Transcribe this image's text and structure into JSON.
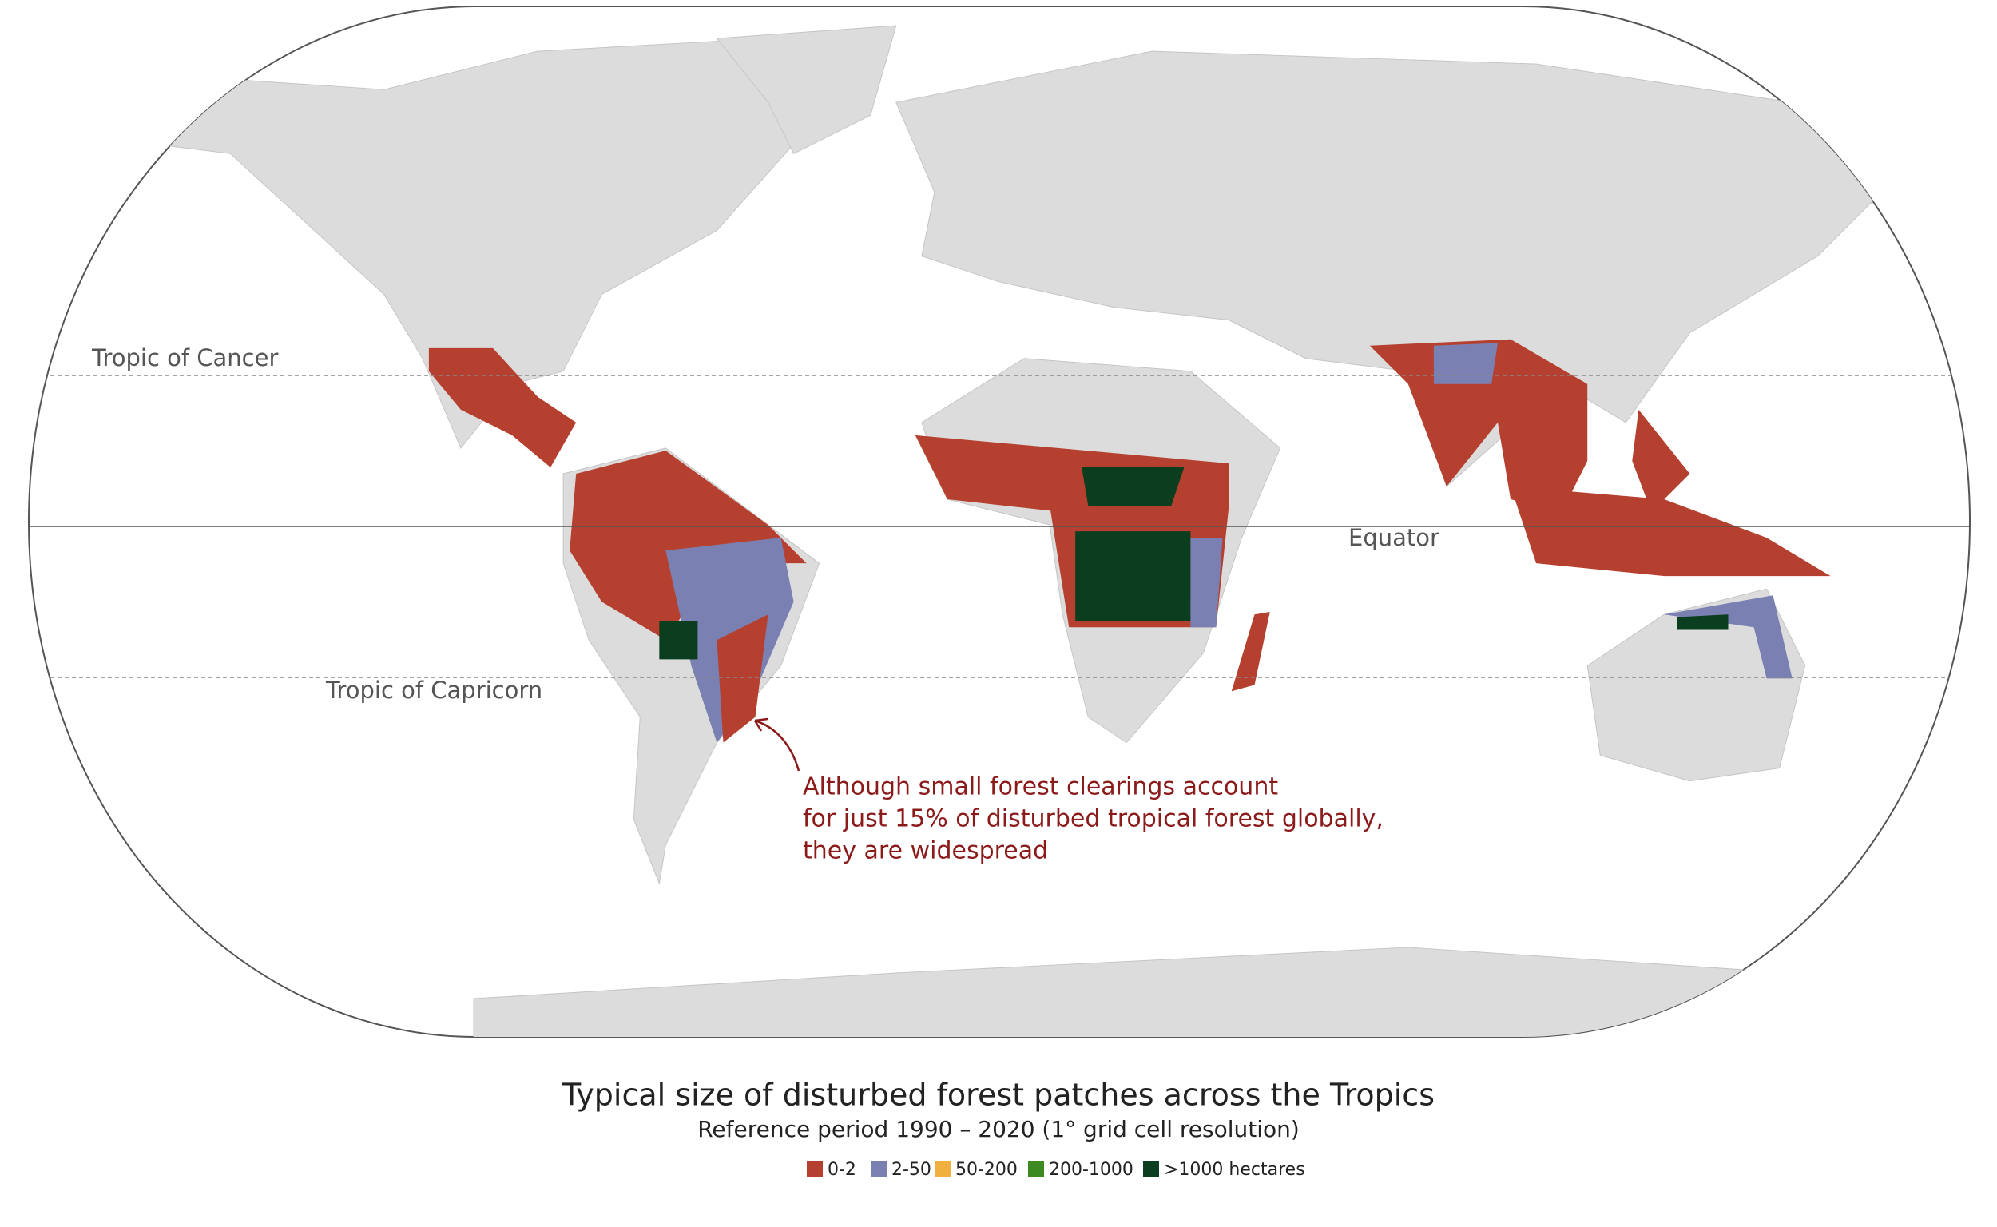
{
  "map": {
    "labels": {
      "tropic_of_cancer": "Tropic of Cancer",
      "equator": "Equator",
      "tropic_of_capricorn": "Tropic of Capricorn"
    },
    "annotation": [
      "Although small forest clearings account",
      "for just 15% of disturbed tropical forest globally,",
      "they are widespread"
    ],
    "title": "Typical size of disturbed forest patches across the Tropics",
    "subtitle": "Reference period 1990 – 2020 (1° grid cell resolution)",
    "legend": [
      {
        "label": "0-2",
        "color": "#b5402f"
      },
      {
        "label": "2-50",
        "color": "#7b80b3"
      },
      {
        "label": "50-200",
        "color": "#f0b040"
      },
      {
        "label": "200-1000",
        "color": "#3d8a23"
      },
      {
        "label": ">1000 hectares",
        "color": "#0b3d1f"
      }
    ]
  }
}
